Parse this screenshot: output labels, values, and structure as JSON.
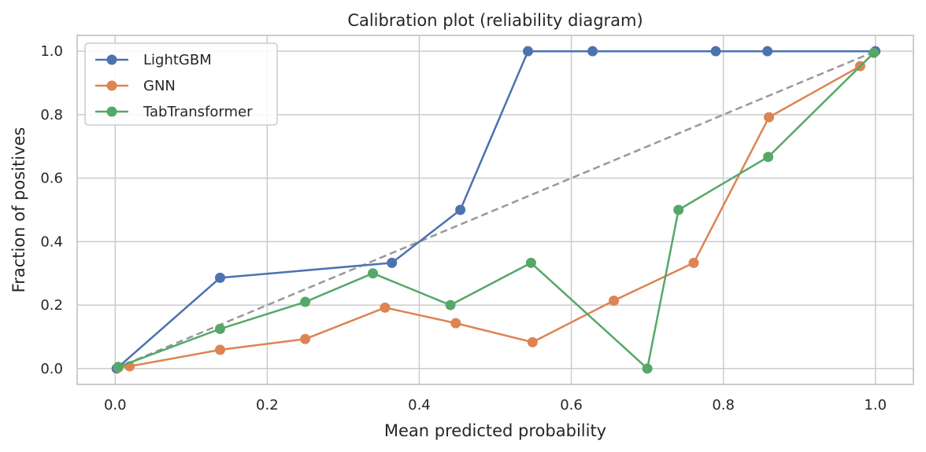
{
  "chart_data": {
    "type": "line",
    "title": "Calibration plot (reliability diagram)",
    "xlabel": "Mean predicted probability",
    "ylabel": "Fraction of positives",
    "xlim": [
      -0.05,
      1.05
    ],
    "ylim": [
      -0.05,
      1.05
    ],
    "xticks": [
      "0.0",
      "0.2",
      "0.4",
      "0.6",
      "0.8",
      "1.0"
    ],
    "yticks": [
      "0.0",
      "0.2",
      "0.4",
      "0.6",
      "0.8",
      "1.0"
    ],
    "grid": true,
    "legend_position": "top-left",
    "reference_line": {
      "x": [
        0,
        1
      ],
      "y": [
        0,
        1
      ],
      "style": "dashed",
      "color": "#999999"
    },
    "series": [
      {
        "name": "LightGBM",
        "color": "#4c72b0",
        "x": [
          0.002,
          0.138,
          0.364,
          0.454,
          0.543,
          0.628,
          0.79,
          0.858,
          1.0
        ],
        "y": [
          0.0,
          0.286,
          0.333,
          0.5,
          1.0,
          1.0,
          1.0,
          1.0,
          1.0
        ]
      },
      {
        "name": "GNN",
        "color": "#dd8452",
        "x": [
          0.004,
          0.019,
          0.138,
          0.25,
          0.355,
          0.448,
          0.549,
          0.656,
          0.761,
          0.86,
          0.98
        ],
        "y": [
          0.003,
          0.007,
          0.059,
          0.093,
          0.192,
          0.143,
          0.083,
          0.214,
          0.333,
          0.792,
          0.953
        ]
      },
      {
        "name": "TabTransformer",
        "color": "#55a868",
        "x": [
          0.004,
          0.138,
          0.25,
          0.339,
          0.441,
          0.547,
          0.7,
          0.741,
          0.859,
          0.998
        ],
        "y": [
          0.005,
          0.125,
          0.21,
          0.3,
          0.2,
          0.333,
          0.0,
          0.5,
          0.667,
          0.995
        ]
      }
    ]
  }
}
